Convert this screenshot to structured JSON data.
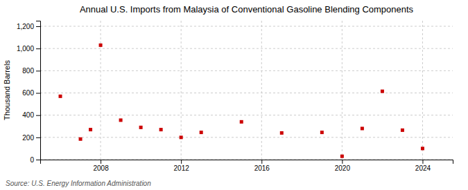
{
  "chart_data": {
    "type": "scatter",
    "title": "Annual U.S. Imports from Malaysia of Conventional Gasoline Blending Components",
    "ylabel": "Thousand Barrels",
    "source": "Source: U.S. Energy Information Administration",
    "x": [
      2006,
      2007,
      2007.5,
      2008,
      2009,
      2010,
      2011,
      2012,
      2013,
      2015,
      2017,
      2019,
      2020,
      2021,
      2022,
      2023,
      2024
    ],
    "values": [
      570,
      185,
      270,
      1030,
      355,
      290,
      270,
      200,
      245,
      340,
      240,
      245,
      30,
      280,
      615,
      265,
      100
    ],
    "color": "#cc0000",
    "marker": "square",
    "xlim": [
      2005.0,
      2025.5
    ],
    "xticks": [
      2008,
      2012,
      2016,
      2020,
      2024
    ],
    "ylim": [
      0,
      1250
    ],
    "yticks": [
      0,
      200,
      400,
      600,
      800,
      {
        "value": 1000,
        "label": "1,000"
      },
      {
        "value": 1200,
        "label": "1,200"
      }
    ],
    "grid": true
  }
}
